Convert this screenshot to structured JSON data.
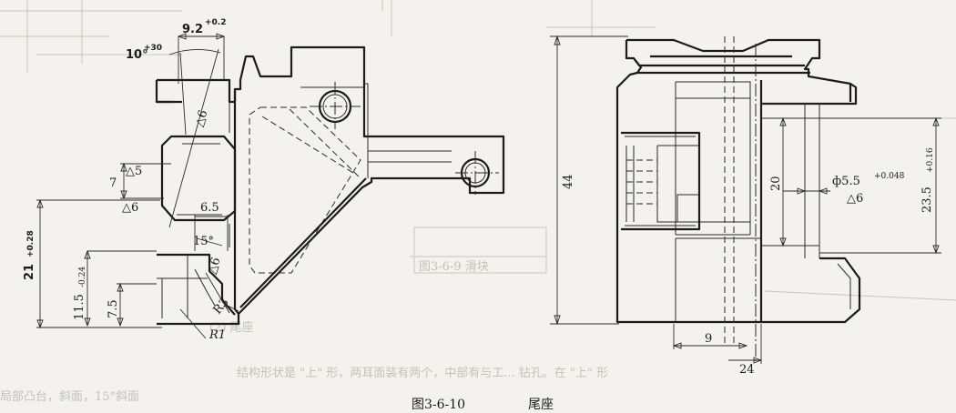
{
  "caption": {
    "figure_number": "图3-6-10",
    "title": "尾座"
  },
  "left_view": {
    "dim_9_2": "9.2",
    "dim_9_2_tol": "+0.2",
    "angle_10": "10°",
    "angle_10_tol": "+30",
    "roughness_6_top": "△6",
    "roughness_5": "△5",
    "dim_7": "7",
    "roughness_6_left": "△6",
    "dim_6_5": "6.5",
    "angle_15": "15°",
    "roughness_6_mid": "△6",
    "dim_21": "21",
    "dim_21_tol": "+0.28",
    "dim_11_5": "11.5",
    "dim_11_5_tol": "-0.24",
    "dim_7_5": "7.5",
    "radius_r3": "R3",
    "radius_r1": "R1"
  },
  "right_view": {
    "dim_44": "44",
    "dim_20": "20",
    "dim_phi": "ф5.5",
    "dim_phi_tol": "+0.048",
    "roughness_6": "△6",
    "dim_23_5": "23.5",
    "dim_23_5_tol": "+0.16",
    "dim_9": "9",
    "dim_24": "24"
  },
  "background_text": {
    "fragment_1": "(2)  尾座",
    "fragment_2": "结构形状是 \"上\" 形，两耳面装有两个，中部有与工... 钻孔。在 \"上\" 形",
    "fragment_3": "局部凸台，斜面，15°斜面",
    "fragment_4": "图3-6-9 滑块"
  }
}
